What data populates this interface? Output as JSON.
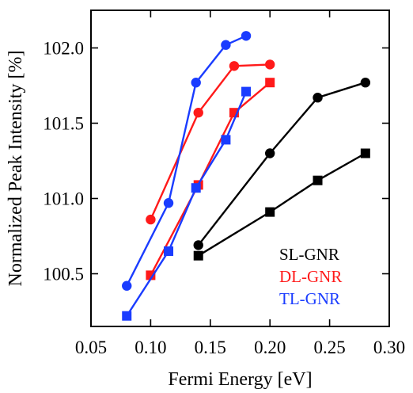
{
  "chart_data": {
    "type": "line",
    "xlabel": "Fermi Energy [eV]",
    "ylabel": "Normalized Peak Intensity [%]",
    "xlim": [
      0.05,
      0.3
    ],
    "ylim": [
      100.15,
      102.25
    ],
    "x_ticks": [
      0.05,
      0.1,
      0.15,
      0.2,
      0.25,
      0.3
    ],
    "x_tick_labels": [
      "0.05",
      "0.10",
      "0.15",
      "0.20",
      "0.25",
      "0.30"
    ],
    "y_ticks": [
      100.5,
      101.0,
      101.5,
      102.0
    ],
    "y_tick_labels": [
      "100.5",
      "101.0",
      "101.5",
      "102.0"
    ],
    "grid": false,
    "legend_position": "bottom-right",
    "series": [
      {
        "name": "SL-GNR",
        "color": "#000000",
        "marker": "circle",
        "points": [
          [
            0.14,
            100.69
          ],
          [
            0.2,
            101.3
          ],
          [
            0.24,
            101.67
          ],
          [
            0.28,
            101.77
          ]
        ]
      },
      {
        "color": "#000000",
        "marker": "square",
        "points": [
          [
            0.14,
            100.62
          ],
          [
            0.2,
            100.91
          ],
          [
            0.24,
            101.12
          ],
          [
            0.28,
            101.3
          ]
        ]
      },
      {
        "name": "DL-GNR",
        "color": "#ff1a1a",
        "marker": "circle",
        "points": [
          [
            0.1,
            100.86
          ],
          [
            0.14,
            101.57
          ],
          [
            0.17,
            101.88
          ],
          [
            0.2,
            101.89
          ]
        ]
      },
      {
        "color": "#ff1a1a",
        "marker": "square",
        "points": [
          [
            0.1,
            100.49
          ],
          [
            0.14,
            101.09
          ],
          [
            0.17,
            101.57
          ],
          [
            0.2,
            101.77
          ]
        ]
      },
      {
        "name": "TL-GNR",
        "color": "#1a3cff",
        "marker": "circle",
        "points": [
          [
            0.08,
            100.42
          ],
          [
            0.115,
            100.97
          ],
          [
            0.138,
            101.77
          ],
          [
            0.163,
            102.02
          ],
          [
            0.18,
            102.08
          ]
        ]
      },
      {
        "color": "#1a3cff",
        "marker": "square",
        "points": [
          [
            0.08,
            100.22
          ],
          [
            0.115,
            100.65
          ],
          [
            0.138,
            101.07
          ],
          [
            0.163,
            101.39
          ],
          [
            0.18,
            101.71
          ]
        ]
      }
    ],
    "legend": [
      {
        "label": "SL-GNR",
        "color": "#000000"
      },
      {
        "label": "DL-GNR",
        "color": "#ff1a1a"
      },
      {
        "label": "TL-GNR",
        "color": "#1a3cff"
      }
    ]
  }
}
